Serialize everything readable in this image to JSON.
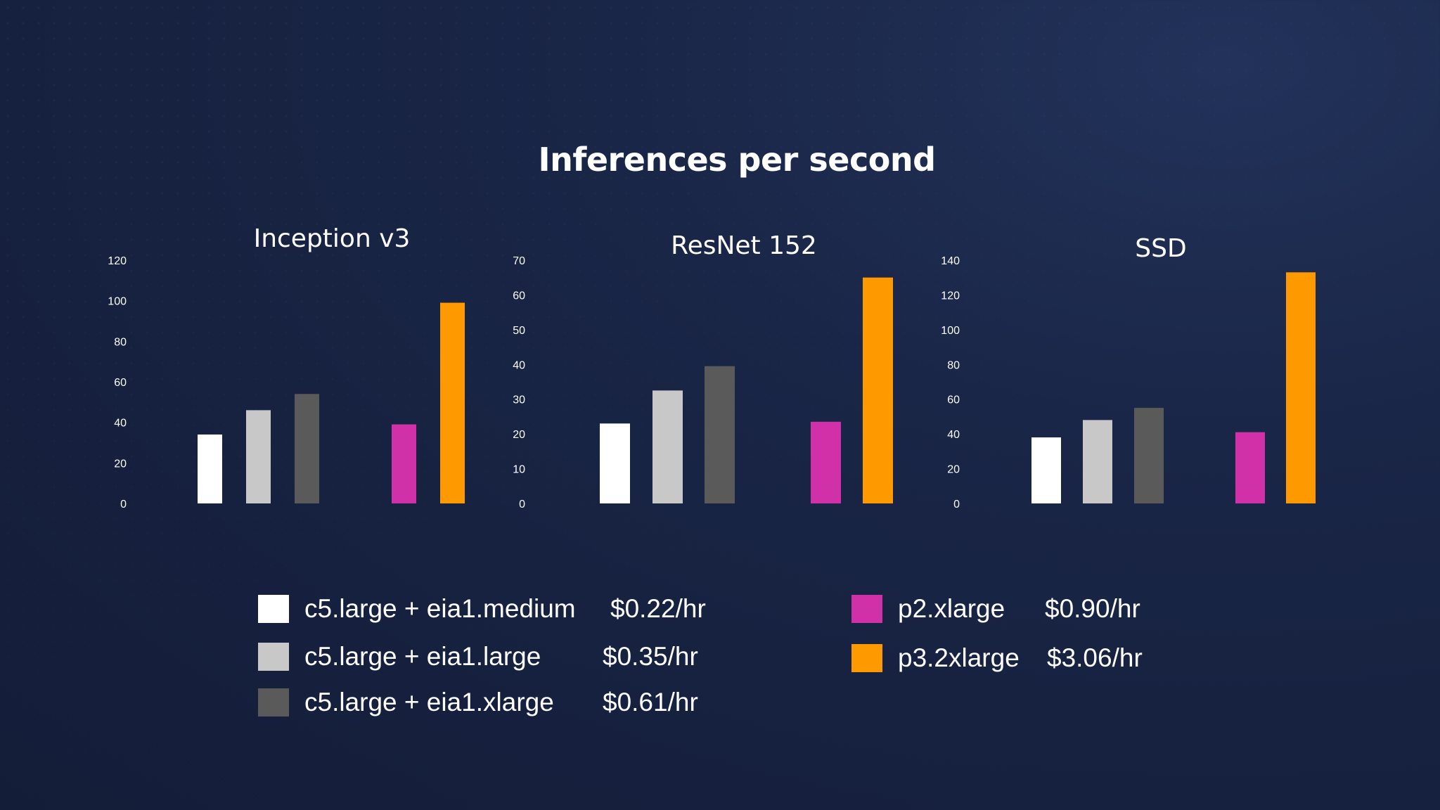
{
  "title": "Inferences per second",
  "colors": {
    "background": "#182343",
    "text": "#ffffff"
  },
  "legend": [
    {
      "label": "c5.large + eia1.medium",
      "price": "$0.22/hr",
      "color": "#ffffff"
    },
    {
      "label": "c5.large + eia1.large",
      "price": "$0.35/hr",
      "color": "#c8c8c8"
    },
    {
      "label": "c5.large + eia1.xlarge",
      "price": "$0.61/hr",
      "color": "#5a5a5a"
    },
    {
      "label": "p2.xlarge",
      "price": "$0.90/hr",
      "color": "#d030a8"
    },
    {
      "label": "p3.2xlarge",
      "price": "$3.06/hr",
      "color": "#ff9900"
    }
  ],
  "chart_data": [
    {
      "type": "bar",
      "title": "Inception v3",
      "categories": [
        "c5.large + eia1.medium",
        "c5.large + eia1.large",
        "c5.large + eia1.xlarge",
        "p2.xlarge",
        "p3.2xlarge"
      ],
      "values": [
        34,
        46,
        54,
        39,
        99
      ],
      "colors": [
        "#ffffff",
        "#c8c8c8",
        "#5a5a5a",
        "#d030a8",
        "#ff9900"
      ],
      "yticks": [
        "0",
        "20",
        "40",
        "60",
        "80",
        "100",
        "120"
      ],
      "ylim": [
        0,
        120
      ],
      "grid": false
    },
    {
      "type": "bar",
      "title": "ResNet 152",
      "categories": [
        "c5.large + eia1.medium",
        "c5.large + eia1.large",
        "c5.large + eia1.xlarge",
        "p2.xlarge",
        "p3.2xlarge"
      ],
      "values": [
        23,
        32.5,
        39.5,
        23.5,
        65
      ],
      "colors": [
        "#ffffff",
        "#c8c8c8",
        "#5a5a5a",
        "#d030a8",
        "#ff9900"
      ],
      "yticks": [
        "0",
        "10",
        "20",
        "30",
        "40",
        "50",
        "60",
        "70"
      ],
      "ylim": [
        0,
        70
      ],
      "grid": false
    },
    {
      "type": "bar",
      "title": "SSD",
      "categories": [
        "c5.large + eia1.medium",
        "c5.large + eia1.large",
        "c5.large + eia1.xlarge",
        "p2.xlarge",
        "p3.2xlarge"
      ],
      "values": [
        38,
        48,
        55,
        41,
        133
      ],
      "colors": [
        "#ffffff",
        "#c8c8c8",
        "#5a5a5a",
        "#d030a8",
        "#ff9900"
      ],
      "yticks": [
        "0",
        "20",
        "40",
        "60",
        "80",
        "100",
        "120",
        "140"
      ],
      "ylim": [
        0,
        140
      ],
      "grid": false
    }
  ]
}
